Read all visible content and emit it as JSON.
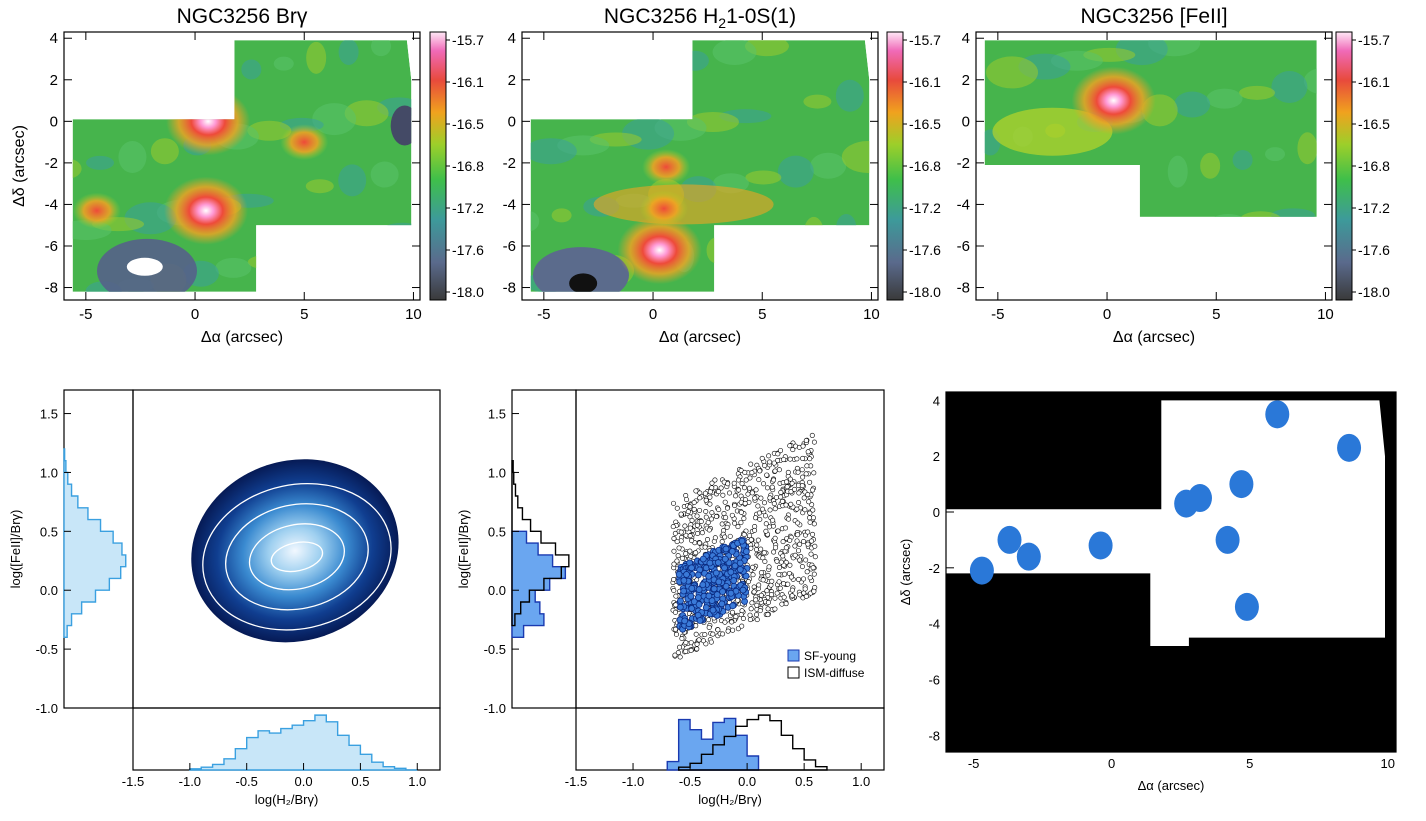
{
  "chart_data": [
    {
      "type": "heatmap",
      "title": "NGC3256 Brγ",
      "xlabel": "Δα (arcsec)",
      "ylabel": "Δδ (arcsec)",
      "xlim": [
        -6,
        10.3
      ],
      "ylim": [
        -8.6,
        4.3
      ],
      "xticks": [
        "-5",
        "0",
        "5",
        "10"
      ],
      "yticks": [
        "4",
        "2",
        "0",
        "-2",
        "-4",
        "-6",
        "-8"
      ],
      "colorbar": {
        "ticks": [
          "-15.7",
          "-16.1",
          "-16.5",
          "-16.8",
          "-17.2",
          "-17.6",
          "-18.0"
        ]
      },
      "peaks": [
        {
          "x": 0.5,
          "y": -4.3,
          "level": "peak (white)"
        },
        {
          "x": 0.6,
          "y": 0.0,
          "level": "peak (white)"
        },
        {
          "x": 5.0,
          "y": -1.0,
          "level": "high (red)"
        },
        {
          "x": -4.5,
          "y": -4.3,
          "level": "high (red)"
        }
      ]
    },
    {
      "type": "heatmap",
      "title": "NGC3256 H₂1-0S(1)",
      "title_parts": [
        "NGC3256 H",
        "2",
        "1-0S(1)"
      ],
      "xlabel": "Δα (arcsec)",
      "ylabel": "",
      "xlim": [
        -6,
        10.3
      ],
      "ylim": [
        -8.6,
        4.3
      ],
      "xticks": [
        "-5",
        "0",
        "5",
        "10"
      ],
      "yticks": [
        "4",
        "2",
        "0",
        "-2",
        "-4",
        "-6",
        "-8"
      ],
      "colorbar": {
        "ticks": [
          "-15.7",
          "-16.1",
          "-16.5",
          "-16.8",
          "-17.2",
          "-17.6",
          "-18.0"
        ]
      },
      "peaks": [
        {
          "x": 0.3,
          "y": -6.2,
          "level": "peak (white)"
        },
        {
          "x": 0.5,
          "y": -4.2,
          "level": "high (red)"
        },
        {
          "x": 0.6,
          "y": -2.2,
          "level": "high (red)"
        }
      ]
    },
    {
      "type": "heatmap",
      "title": "NGC3256 [FeII]",
      "xlabel": "Δα (arcsec)",
      "ylabel": "",
      "xlim": [
        -6,
        10.3
      ],
      "ylim": [
        -8.6,
        4.3
      ],
      "xticks": [
        "-5",
        "0",
        "5",
        "10"
      ],
      "yticks": [
        "4",
        "2",
        "0",
        "-2",
        "-4",
        "-6",
        "-8"
      ],
      "colorbar": {
        "ticks": [
          "-15.7",
          "-16.1",
          "-16.5",
          "-16.8",
          "-17.2",
          "-17.6",
          "-18.0"
        ]
      },
      "peaks": [
        {
          "x": 0.3,
          "y": 1.0,
          "level": "peak (white)"
        }
      ]
    },
    {
      "type": "heatmap",
      "title": "",
      "xlabel": "log(H₂/Brγ)",
      "ylabel": "log([FeII]/Brγ)",
      "xlim": [
        -1.5,
        1.2
      ],
      "ylim": [
        -1.0,
        1.7
      ],
      "xticks": [
        "-1.5",
        "-1.0",
        "-0.5",
        "0.0",
        "0.5",
        "1.0"
      ],
      "yticks": [
        "1.5",
        "1.0",
        "0.5",
        "0.0",
        "-0.5",
        "-1.0"
      ],
      "density_peak": {
        "x": 0.1,
        "y": 0.25
      },
      "x_histogram": {
        "bins": [
          -1.0,
          -0.9,
          -0.8,
          -0.7,
          -0.6,
          -0.5,
          -0.4,
          -0.3,
          -0.2,
          -0.1,
          0.0,
          0.1,
          0.2,
          0.3,
          0.4,
          0.5,
          0.6,
          0.7,
          0.8,
          0.9
        ],
        "counts": [
          0.02,
          0.05,
          0.1,
          0.2,
          0.38,
          0.58,
          0.7,
          0.66,
          0.74,
          0.8,
          0.88,
          0.98,
          0.86,
          0.62,
          0.44,
          0.28,
          0.14,
          0.06,
          0.03,
          0.0
        ]
      },
      "y_histogram": {
        "bins": [
          -0.4,
          -0.3,
          -0.2,
          -0.1,
          0.0,
          0.1,
          0.2,
          0.3,
          0.4,
          0.5,
          0.6,
          0.7,
          0.8,
          0.9,
          1.0,
          1.1
        ],
        "counts": [
          0.05,
          0.12,
          0.28,
          0.5,
          0.72,
          0.9,
          0.98,
          0.92,
          0.78,
          0.58,
          0.38,
          0.22,
          0.12,
          0.06,
          0.03,
          0.01
        ]
      }
    },
    {
      "type": "scatter",
      "title": "",
      "xlabel": "log(H₂/Brγ)",
      "ylabel": "log([FeII]/Brγ)",
      "xlim": [
        -1.5,
        1.2
      ],
      "ylim": [
        -1.0,
        1.7
      ],
      "xticks": [
        "-1.5",
        "-1.0",
        "-0.5",
        "0.0",
        "0.5",
        "1.0"
      ],
      "yticks": [
        "1.5",
        "1.0",
        "0.5",
        "0.0",
        "-0.5",
        "-1.0"
      ],
      "legend": {
        "placement": "bottom-right",
        "entries": [
          "SF-young",
          "ISM-diffuse"
        ]
      },
      "series": [
        {
          "name": "SF-young",
          "color": "#3a7ad8",
          "x_range": [
            -0.6,
            0.0
          ],
          "y_range": [
            -0.35,
            0.45
          ],
          "n": 320
        },
        {
          "name": "ISM-diffuse",
          "color": "#ffffff",
          "x_range": [
            -0.65,
            0.6
          ],
          "y_range": [
            -0.6,
            1.35
          ],
          "n": 900
        }
      ],
      "x_histograms": [
        {
          "name": "SF-young",
          "bins": [
            -0.7,
            -0.6,
            -0.5,
            -0.4,
            -0.3,
            -0.2,
            -0.1,
            0.0
          ],
          "counts": [
            0.15,
            0.9,
            0.72,
            0.55,
            0.85,
            0.92,
            0.62,
            0.25
          ]
        },
        {
          "name": "ISM-diffuse",
          "bins": [
            -0.6,
            -0.5,
            -0.4,
            -0.3,
            -0.2,
            -0.1,
            0.0,
            0.1,
            0.2,
            0.3,
            0.4,
            0.5,
            0.6
          ],
          "counts": [
            0.05,
            0.12,
            0.28,
            0.45,
            0.6,
            0.78,
            0.9,
            0.98,
            0.88,
            0.62,
            0.38,
            0.18,
            0.06
          ]
        }
      ],
      "y_histograms": [
        {
          "name": "SF-young",
          "bins": [
            -0.4,
            -0.3,
            -0.2,
            -0.1,
            0.0,
            0.1,
            0.2,
            0.3,
            0.4
          ],
          "counts": [
            0.2,
            0.55,
            0.48,
            0.4,
            0.65,
            0.92,
            0.7,
            0.45,
            0.25
          ]
        },
        {
          "name": "ISM-diffuse",
          "bins": [
            -0.3,
            -0.2,
            -0.1,
            0.0,
            0.1,
            0.2,
            0.3,
            0.4,
            0.5,
            0.6,
            0.7,
            0.8,
            0.9,
            1.0
          ],
          "counts": [
            0.05,
            0.15,
            0.3,
            0.55,
            0.85,
            0.98,
            0.75,
            0.5,
            0.32,
            0.18,
            0.1,
            0.06,
            0.03,
            0.02
          ]
        }
      ]
    },
    {
      "type": "heatmap",
      "title": "",
      "xlabel": "Δα (arcsec)",
      "ylabel": "Δδ (arcsec)",
      "xlim": [
        -6.0,
        10.3
      ],
      "ylim": [
        -8.6,
        4.3
      ],
      "xticks": [
        "-5",
        "0",
        "5",
        "10"
      ],
      "yticks": [
        "4",
        "2",
        "0",
        "-2",
        "-4",
        "-6",
        "-8"
      ],
      "blobs": [
        {
          "x": 6.0,
          "y": 3.5
        },
        {
          "x": 8.6,
          "y": 2.3
        },
        {
          "x": 3.2,
          "y": 0.5
        },
        {
          "x": 2.7,
          "y": 0.3
        },
        {
          "x": 4.7,
          "y": 1.0
        },
        {
          "x": -0.4,
          "y": -1.2
        },
        {
          "x": 4.2,
          "y": -1.0
        },
        {
          "x": -3.7,
          "y": -1.0
        },
        {
          "x": -3.0,
          "y": -1.6
        },
        {
          "x": -4.7,
          "y": -2.1
        },
        {
          "x": 4.9,
          "y": -3.4
        }
      ]
    }
  ]
}
